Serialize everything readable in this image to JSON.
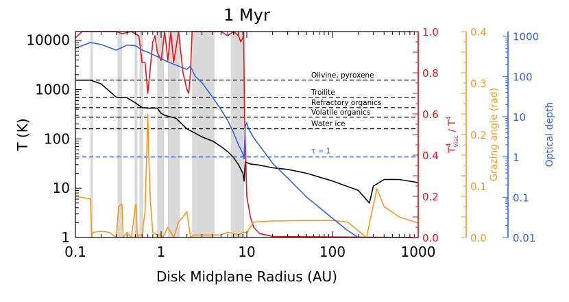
{
  "chart_data": {
    "type": "line",
    "title": "1 Myr",
    "xlabel": "Disk Midplane Radius (AU)",
    "x_scale": "log",
    "xlim": [
      0.1,
      1000
    ],
    "x_ticks": [
      {
        "v": 0.1,
        "label": "0.1"
      },
      {
        "v": 1,
        "label": "1"
      },
      {
        "v": 10,
        "label": "10"
      },
      {
        "v": 100,
        "label": "100"
      },
      {
        "v": 1000,
        "label": "1000"
      }
    ],
    "axes": {
      "temperature": {
        "label": "T (K)",
        "scale": "log",
        "lim": [
          1,
          15000
        ],
        "color": "#000000",
        "ticks": [
          {
            "v": 1,
            "label": "1"
          },
          {
            "v": 10,
            "label": "10"
          },
          {
            "v": 100,
            "label": "100"
          },
          {
            "v": 1000,
            "label": "1000"
          },
          {
            "v": 10000,
            "label": "10000"
          }
        ]
      },
      "ratio": {
        "label": "T_visc^4 / T^4",
        "scale": "linear",
        "lim": [
          0,
          1
        ],
        "color": "#e8151b",
        "ticks": [
          {
            "v": 0.0,
            "label": "0.0"
          },
          {
            "v": 0.2,
            "label": "0.2"
          },
          {
            "v": 0.4,
            "label": "0.4"
          },
          {
            "v": 0.6,
            "label": "0.6"
          },
          {
            "v": 0.8,
            "label": "0.8"
          },
          {
            "v": 1.0,
            "label": "1.0"
          }
        ]
      },
      "grazing": {
        "label": "Grazing angle (rad)",
        "scale": "linear",
        "lim": [
          0,
          0.4
        ],
        "color": "#f39a1e",
        "ticks": [
          {
            "v": 0.0,
            "label": "0.0"
          },
          {
            "v": 0.1,
            "label": "0.1"
          },
          {
            "v": 0.2,
            "label": "0.2"
          },
          {
            "v": 0.3,
            "label": "0.3"
          },
          {
            "v": 0.4,
            "label": "0.4"
          }
        ]
      },
      "optical_depth": {
        "label": "Optical depth",
        "scale": "log",
        "lim": [
          0.01,
          1300
        ],
        "color": "#2f62e6",
        "ticks": [
          {
            "v": 0.01,
            "label": "0.01"
          },
          {
            "v": 0.1,
            "label": "0.1"
          },
          {
            "v": 1,
            "label": "1"
          },
          {
            "v": 10,
            "label": "10"
          },
          {
            "v": 100,
            "label": "100"
          },
          {
            "v": 1000,
            "label": "1000"
          }
        ]
      }
    },
    "condensation_lines": [
      {
        "label": "Olivine, pyroxene",
        "T": 1550
      },
      {
        "label": "Troilite",
        "T": 690
      },
      {
        "label": "Refractory organics",
        "T": 430
      },
      {
        "label": "Volatile organics",
        "T": 275
      },
      {
        "label": "Water ice",
        "T": 160
      }
    ],
    "tau_line": {
      "label": "τ = 1",
      "tau": 1
    },
    "shaded_regions": [
      [
        0.15,
        0.16
      ],
      [
        0.31,
        0.35
      ],
      [
        0.49,
        0.53
      ],
      [
        0.56,
        0.62
      ],
      [
        0.9,
        1.08
      ],
      [
        1.2,
        1.65
      ],
      [
        2.3,
        4.2
      ],
      [
        6.5,
        9.3
      ]
    ],
    "series": [
      {
        "name": "T",
        "axis": "temperature",
        "color": "#000000",
        "x": [
          0.1,
          0.15,
          0.2,
          0.3,
          0.4,
          0.5,
          0.6,
          0.7,
          0.9,
          1.0,
          1.1,
          1.5,
          2.0,
          2.5,
          3.0,
          4.0,
          5.0,
          6.0,
          7.0,
          8.0,
          9.0,
          9.3,
          9.6,
          10,
          11,
          13,
          16,
          20,
          30,
          50,
          100,
          200,
          270,
          300,
          400,
          600,
          1000
        ],
        "y": [
          1550,
          1550,
          1300,
          700,
          680,
          540,
          430,
          420,
          420,
          330,
          300,
          260,
          160,
          130,
          110,
          90,
          70,
          55,
          42,
          30,
          20,
          14,
          35,
          33,
          31,
          30,
          28,
          26,
          24,
          20,
          14,
          9,
          5,
          11,
          15,
          15,
          13
        ]
      },
      {
        "name": "T_visc^4 / T^4",
        "axis": "ratio",
        "color": "#e8151b",
        "x": [
          0.1,
          0.12,
          0.15,
          0.2,
          0.25,
          0.3,
          0.35,
          0.45,
          0.55,
          0.6,
          0.65,
          0.7,
          0.75,
          0.8,
          0.85,
          0.9,
          1.0,
          1.1,
          1.2,
          1.3,
          1.4,
          1.6,
          1.8,
          2.0,
          2.1,
          2.2,
          2.3,
          2.5,
          3.0,
          4.0,
          5.0,
          6.0,
          7.0,
          8.0,
          8.5,
          9.0,
          9.2,
          9.4,
          10,
          11,
          12,
          14,
          20,
          1000
        ],
        "y": [
          0.97,
          1.0,
          1.0,
          1.0,
          1.0,
          1.0,
          0.99,
          1.0,
          0.98,
          0.85,
          0.85,
          0.7,
          0.83,
          0.95,
          0.98,
          0.9,
          0.86,
          1.0,
          0.86,
          1.0,
          0.85,
          1.0,
          0.8,
          0.72,
          0.7,
          0.8,
          1.0,
          1.0,
          1.0,
          1.0,
          1.0,
          0.98,
          1.0,
          0.98,
          0.95,
          0.97,
          1.0,
          0.6,
          0.2,
          0.1,
          0.05,
          0.02,
          0.005,
          0.0
        ]
      },
      {
        "name": "Grazing angle",
        "axis": "grazing",
        "color": "#f39a1e",
        "x": [
          0.1,
          0.15,
          0.155,
          0.16,
          0.2,
          0.25,
          0.3,
          0.32,
          0.35,
          0.36,
          0.4,
          0.45,
          0.5,
          0.51,
          0.53,
          0.55,
          0.6,
          0.65,
          0.7,
          0.72,
          0.75,
          0.8,
          0.9,
          1.0,
          1.05,
          1.2,
          1.4,
          1.6,
          1.8,
          2.0,
          2.2,
          2.4,
          3,
          4,
          5,
          6,
          7,
          8,
          9,
          10,
          12,
          20,
          50,
          100,
          150,
          250,
          280,
          330,
          400,
          600,
          1000
        ],
        "y": [
          0.08,
          0.075,
          0.0,
          0.01,
          0.012,
          0.01,
          0.0,
          0.06,
          0.065,
          0.0,
          0.01,
          0.0,
          0.06,
          0.064,
          0.0,
          0.005,
          0.005,
          0.05,
          0.24,
          0.15,
          0.07,
          0.01,
          0.005,
          0.005,
          0.0,
          0.02,
          0.0,
          0.03,
          0.04,
          0.05,
          0.0,
          0.005,
          0.005,
          0.005,
          0.005,
          0.01,
          0.008,
          0.005,
          0.01,
          0.01,
          0.03,
          0.032,
          0.033,
          0.033,
          0.03,
          0.0,
          0.04,
          0.095,
          0.06,
          0.04,
          0.028
        ]
      },
      {
        "name": "Optical depth",
        "axis": "optical_depth",
        "color": "#2f62e6",
        "x": [
          0.1,
          0.15,
          0.2,
          0.3,
          0.4,
          0.5,
          0.6,
          0.7,
          0.8,
          1.0,
          1.2,
          1.5,
          2.0,
          2.2,
          2.5,
          3.0,
          4.0,
          5.0,
          6.0,
          7.0,
          8.0,
          9.0,
          9.3,
          9.6,
          10,
          10.5,
          12,
          15,
          20,
          30,
          50,
          100,
          150,
          200
        ],
        "y": [
          500,
          700,
          620,
          450,
          600,
          580,
          450,
          400,
          350,
          280,
          230,
          190,
          150,
          180,
          100,
          70,
          30,
          15,
          8,
          4,
          2,
          1.2,
          0.9,
          6,
          7,
          5,
          3,
          1.6,
          0.7,
          0.3,
          0.1,
          0.03,
          0.015,
          0.01
        ]
      }
    ]
  }
}
